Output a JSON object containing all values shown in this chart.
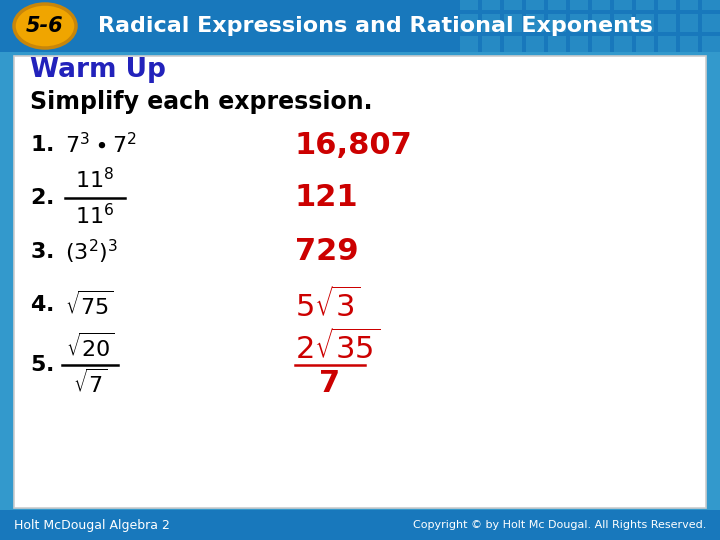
{
  "title_number": "5-6",
  "title_text": "Radical Expressions and Rational Exponents",
  "header_bg": "#1878bc",
  "header_text_color": "#ffffff",
  "oval_bg": "#f0a500",
  "oval_border": "#c8860a",
  "warm_up_color": "#2222bb",
  "body_bg": "#ffffff",
  "body_border": "#cccccc",
  "answer_color": "#cc0000",
  "footer_bg": "#1878bc",
  "footer_left": "Holt McDougal Algebra 2",
  "footer_right": "Copyright © by Holt Mc Dougal. All Rights Reserved.",
  "footer_text_color": "#ffffff",
  "outer_bg": "#3399cc"
}
